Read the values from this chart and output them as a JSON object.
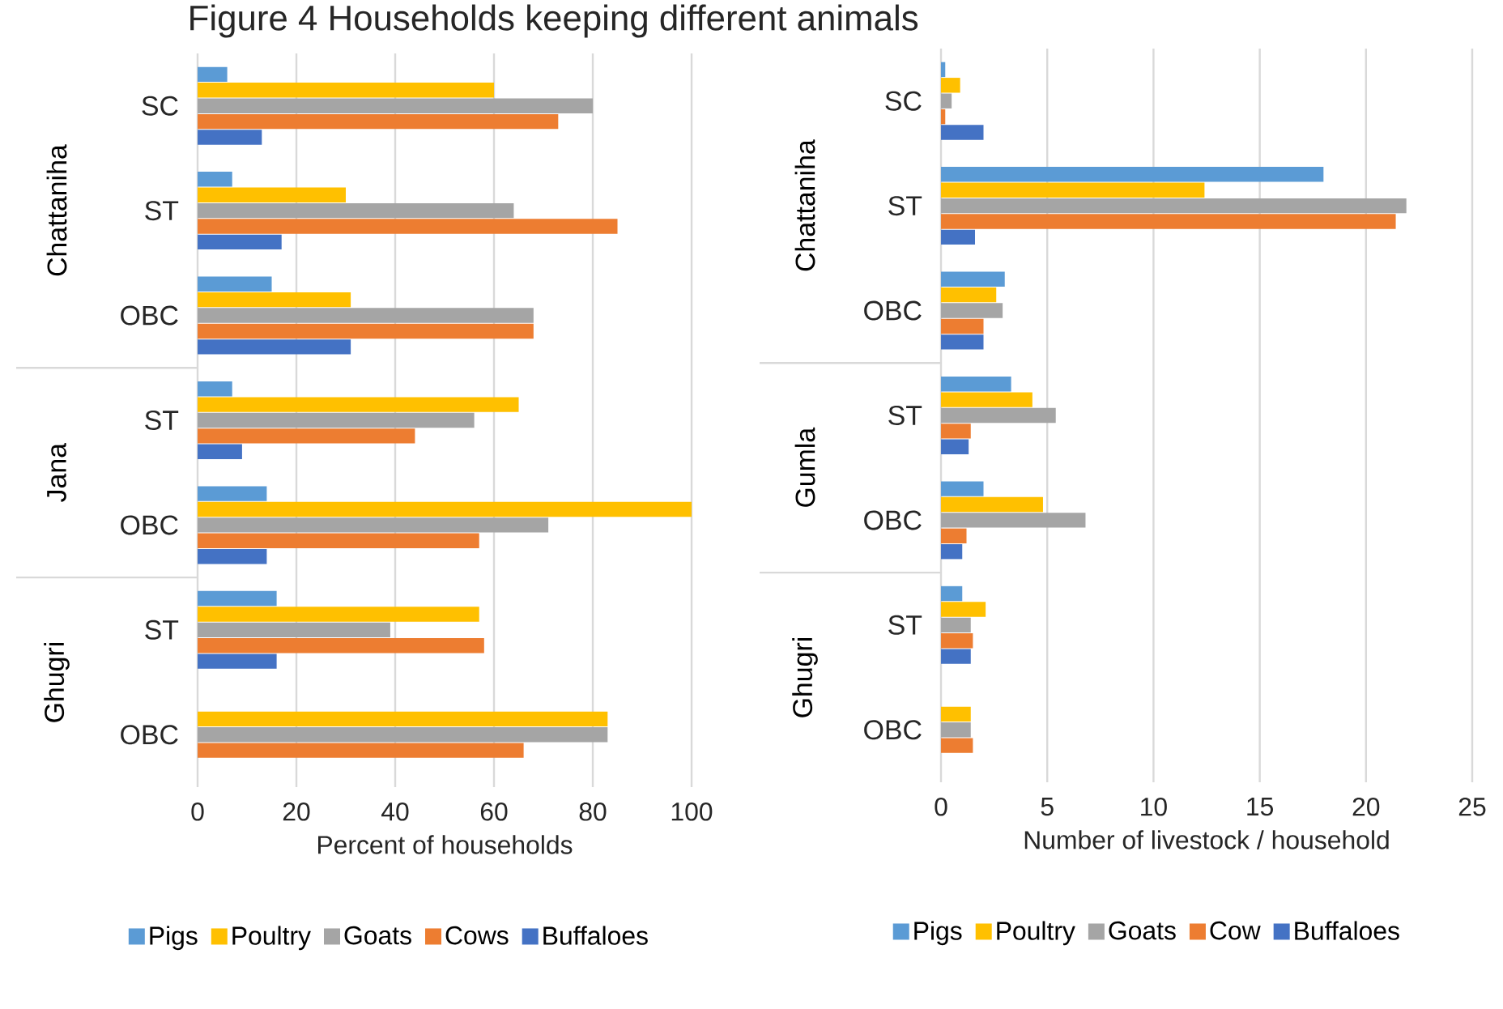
{
  "chart_data": [
    {
      "type": "bar",
      "orientation": "horizontal",
      "title": "Figure 4 Households keeping different animals",
      "xlabel": "Percent of households",
      "categories": [
        "SC",
        "ST",
        "OBC",
        "ST",
        "OBC",
        "ST",
        "OBC"
      ],
      "annotations": [
        "Chattaniha",
        "Jana",
        "Ghugri"
      ],
      "series": [
        {
          "name": "Pigs",
          "color": "#5b9bd5",
          "values": [
            6,
            7,
            15,
            7,
            14,
            16,
            0
          ]
        },
        {
          "name": "Poultry",
          "color": "#ffc000",
          "values": [
            60,
            30,
            31,
            65,
            100,
            57,
            83
          ]
        },
        {
          "name": "Goats",
          "color": "#a5a5a5",
          "values": [
            80,
            64,
            68,
            56,
            71,
            39,
            83
          ]
        },
        {
          "name": "Cows",
          "color": "#ed7d31",
          "values": [
            73,
            85,
            68,
            44,
            57,
            58,
            66
          ]
        },
        {
          "name": "Buffaloes",
          "color": "#4472c4",
          "values": [
            13,
            17,
            31,
            9,
            14,
            16,
            0
          ]
        }
      ],
      "xlim": [
        0,
        100
      ],
      "xticks": [
        0,
        20,
        40,
        60,
        80,
        100
      ],
      "grid": "x",
      "legend": "bottom"
    },
    {
      "type": "bar",
      "orientation": "horizontal",
      "xlabel": "Number of livestock / household",
      "categories": [
        "SC",
        "ST",
        "OBC",
        "ST",
        "OBC",
        "ST",
        "OBC"
      ],
      "annotations": [
        "Chattaniha",
        "Gumla",
        "Ghugri"
      ],
      "series": [
        {
          "name": "Pigs",
          "color": "#5b9bd5",
          "values": [
            0.2,
            18.0,
            3.0,
            3.3,
            2.0,
            1.0,
            0
          ]
        },
        {
          "name": "Poultry",
          "color": "#ffc000",
          "values": [
            0.9,
            12.4,
            2.6,
            4.3,
            4.8,
            2.1,
            1.4
          ]
        },
        {
          "name": "Goats",
          "color": "#a5a5a5",
          "values": [
            0.5,
            21.9,
            2.9,
            5.4,
            6.8,
            1.4,
            1.4
          ]
        },
        {
          "name": "Cow",
          "color": "#ed7d31",
          "values": [
            0.2,
            21.4,
            2.0,
            1.4,
            1.2,
            1.5,
            1.5
          ]
        },
        {
          "name": "Buffaloes",
          "color": "#4472c4",
          "values": [
            2.0,
            1.6,
            2.0,
            1.3,
            1.0,
            1.4,
            0
          ]
        }
      ],
      "xlim": [
        0,
        25
      ],
      "xticks": [
        0,
        5,
        10,
        15,
        20,
        25
      ],
      "grid": "x",
      "legend": "bottom"
    }
  ]
}
